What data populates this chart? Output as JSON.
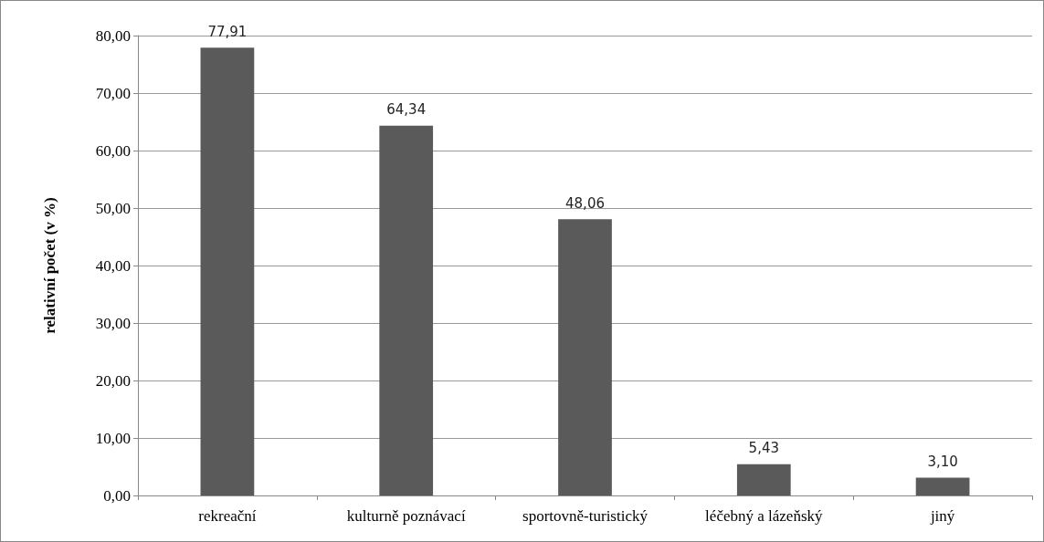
{
  "chart_data": {
    "type": "bar",
    "ylabel": "relativní počet (v %)",
    "categories": [
      "rekreační",
      "kulturně poznávací",
      "sportovně-turistický",
      "léčebný a lázeňský",
      "jiný"
    ],
    "values": [
      77.91,
      64.34,
      48.06,
      5.43,
      3.1
    ],
    "value_labels": [
      "77,91",
      "64,34",
      "48,06",
      "5,43",
      "3,10"
    ],
    "color": "#5a5a5a",
    "ylim": [
      0,
      80
    ],
    "yticks": [
      {
        "value": 0,
        "label": "0,00"
      },
      {
        "value": 10,
        "label": "10,00"
      },
      {
        "value": 20,
        "label": "20,00"
      },
      {
        "value": 30,
        "label": "30,00"
      },
      {
        "value": 40,
        "label": "40,00"
      },
      {
        "value": 50,
        "label": "50,00"
      },
      {
        "value": 60,
        "label": "60,00"
      },
      {
        "value": 70,
        "label": "70,00"
      },
      {
        "value": 80,
        "label": "80,00"
      }
    ],
    "grid": "y"
  }
}
